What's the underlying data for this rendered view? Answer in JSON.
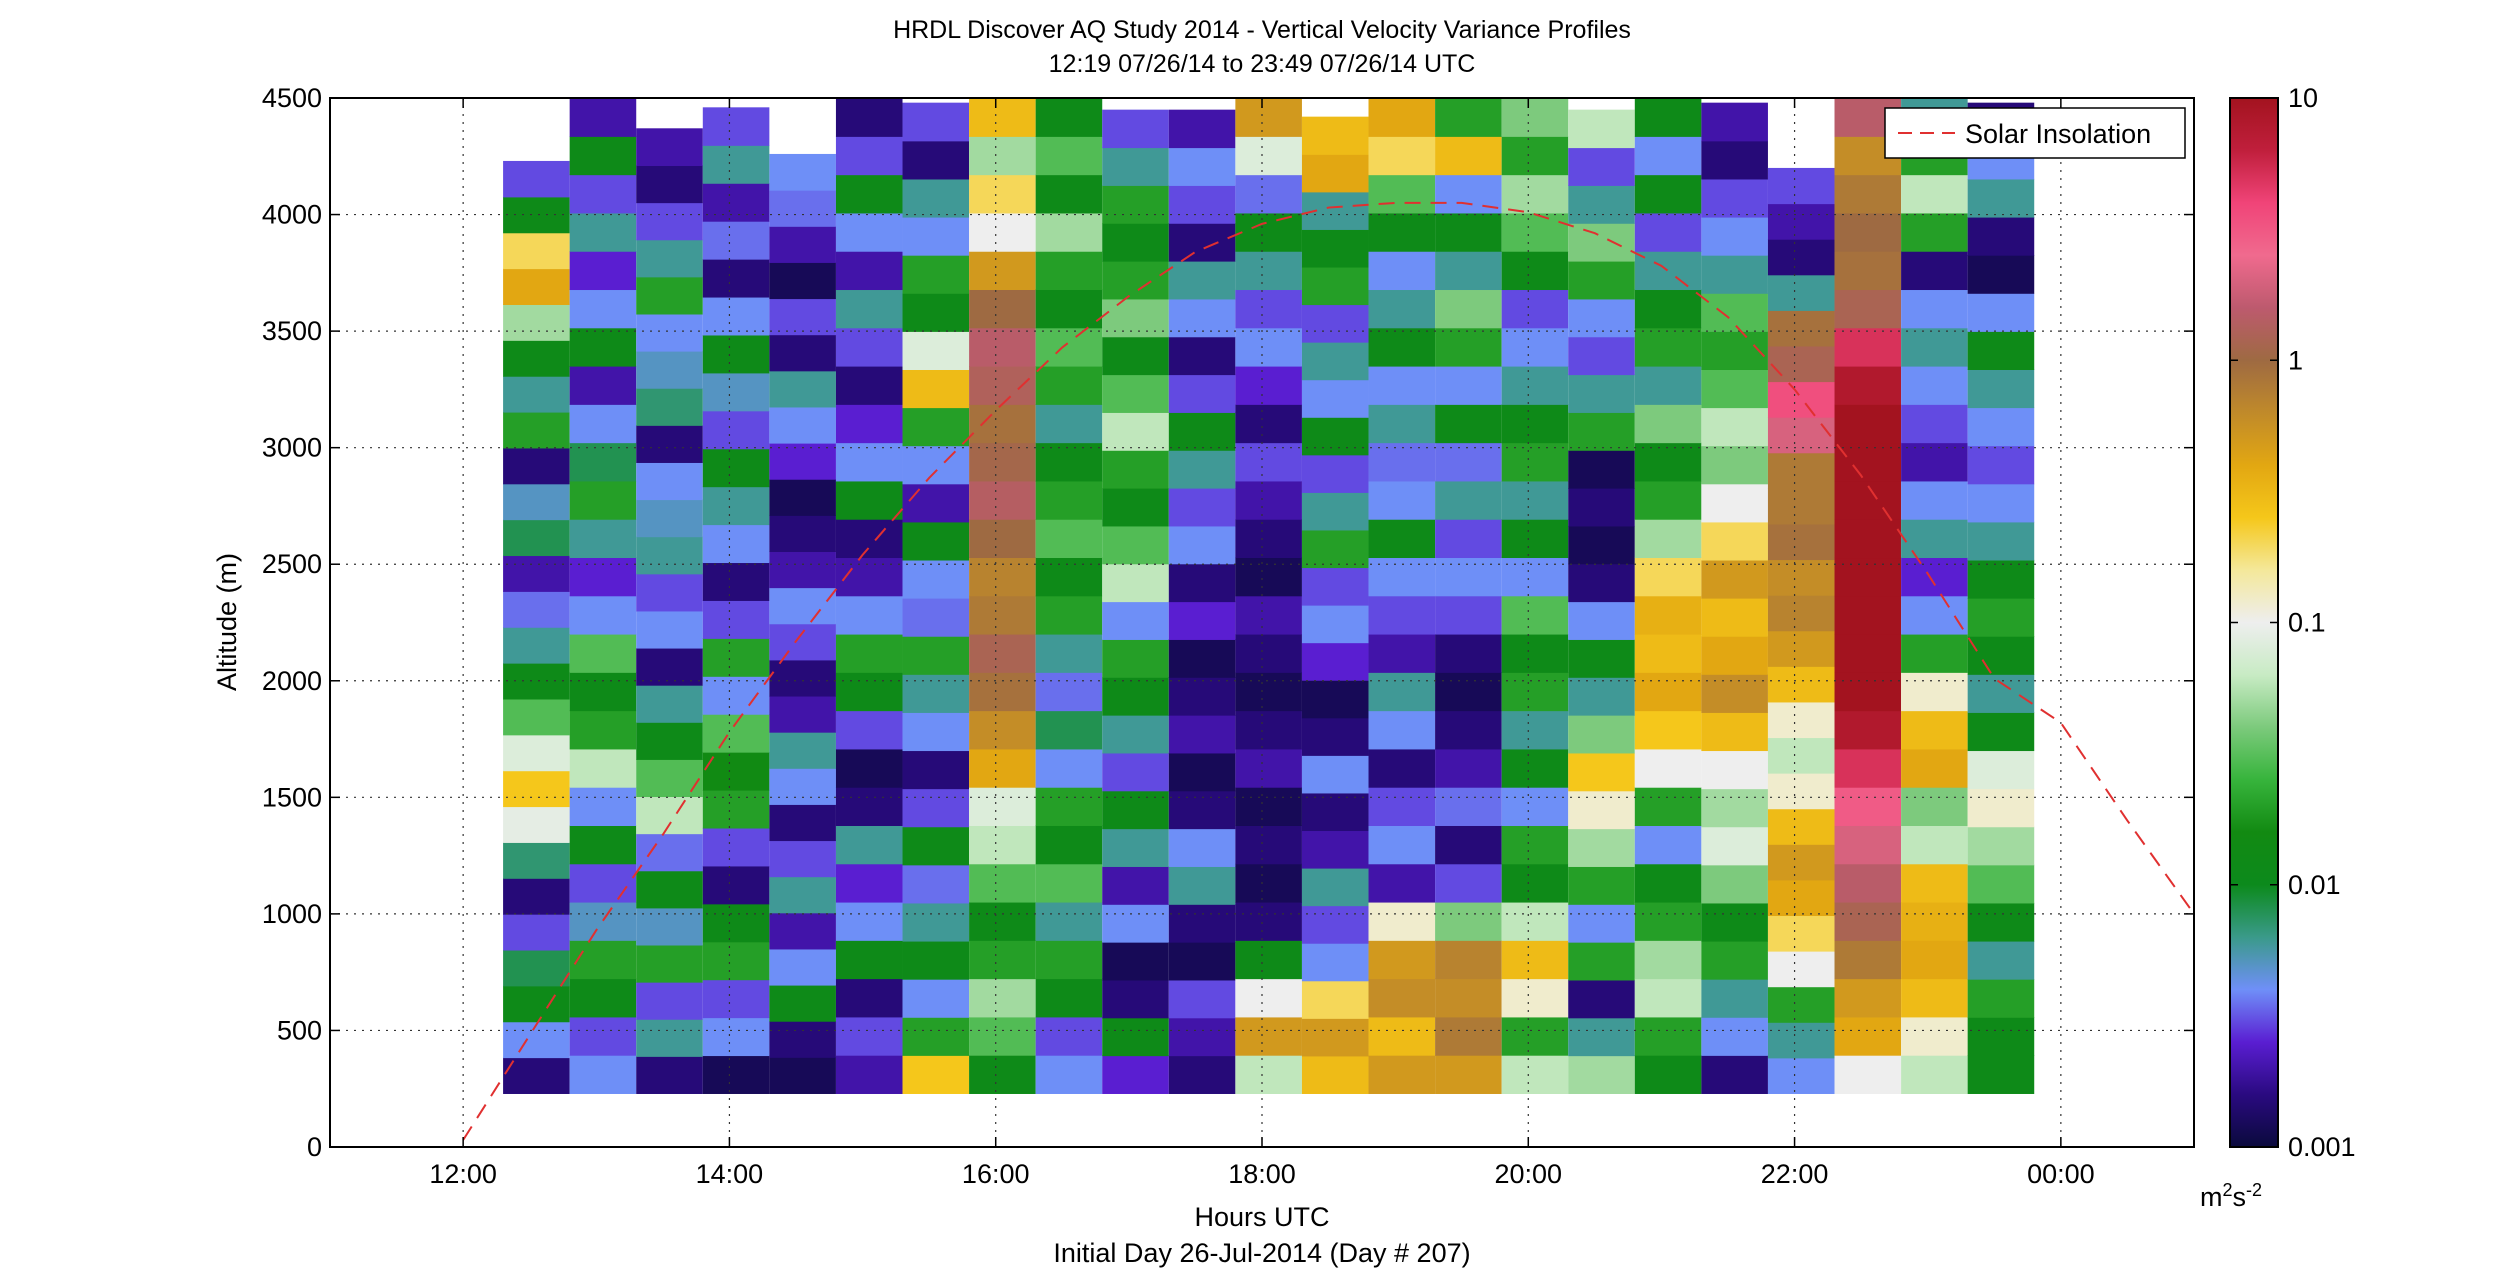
{
  "chart_data": {
    "type": "heatmap",
    "title": "HRDL Discover AQ Study 2014 - Vertical Velocity Variance Profiles",
    "subtitle": "12:19 07/26/14 to 23:49 07/26/14  UTC",
    "xlabel": "Hours UTC",
    "xlabel2": "Initial Day 26-Jul-2014 (Day # 207)",
    "ylabel": "Altitude (m)",
    "x_unit": "hours UTC",
    "xlim": [
      11,
      25
    ],
    "ylim": [
      0,
      4500
    ],
    "x_ticks": [
      {
        "value": 12,
        "label": "12:00"
      },
      {
        "value": 14,
        "label": "14:00"
      },
      {
        "value": 16,
        "label": "16:00"
      },
      {
        "value": 18,
        "label": "18:00"
      },
      {
        "value": 20,
        "label": "20:00"
      },
      {
        "value": 22,
        "label": "22:00"
      },
      {
        "value": 24,
        "label": "00:00"
      }
    ],
    "y_ticks": [
      0,
      500,
      1000,
      1500,
      2000,
      2500,
      3000,
      3500,
      4000,
      4500
    ],
    "grid": true,
    "colorbar": {
      "scale": "log",
      "range": [
        0.001,
        10
      ],
      "ticks": [
        {
          "value": 0.001,
          "label": "0.001"
        },
        {
          "value": 0.01,
          "label": "0.01"
        },
        {
          "value": 0.1,
          "label": "0.1"
        },
        {
          "value": 1,
          "label": "1"
        },
        {
          "value": 10,
          "label": "10"
        }
      ],
      "unit_label": "m",
      "unit_sup1": "2",
      "unit_mid": "s",
      "unit_sup2": "-2",
      "stops": [
        "#0a0a3c",
        "#2a0a80",
        "#5a1ed2",
        "#6f8ff8",
        "#3a9a8a",
        "#0c8a1c",
        "#128a12",
        "#37b43c",
        "#7cca7c",
        "#c8ebc4",
        "#eeeeee",
        "#f4e89a",
        "#f5c71a",
        "#e2a712",
        "#c08a2a",
        "#9e6a42",
        "#bd5a6e",
        "#f06a8e",
        "#f04478",
        "#c01f3c",
        "#a3131f"
      ]
    },
    "legend": {
      "position": "top-right",
      "entries": [
        {
          "label": "Solar Insolation",
          "color": "#e03030",
          "style": "dashed"
        }
      ]
    },
    "solar_insolation": {
      "x": [
        12.0,
        12.5,
        13.0,
        13.5,
        14.0,
        14.5,
        15.0,
        15.5,
        16.0,
        16.5,
        17.0,
        17.5,
        18.0,
        18.5,
        19.0,
        19.5,
        20.0,
        20.5,
        21.0,
        21.5,
        22.0,
        22.5,
        23.0,
        23.5,
        24.0,
        24.5,
        25.0
      ],
      "y": [
        30,
        480,
        930,
        1340,
        1780,
        2170,
        2540,
        2870,
        3160,
        3430,
        3650,
        3840,
        3960,
        4030,
        4050,
        4050,
        4010,
        3920,
        3780,
        3560,
        3250,
        2880,
        2460,
        2010,
        1820,
        1400,
        1000
      ]
    },
    "profiles": [
      {
        "time": 12.55,
        "top": 4230,
        "levels": [
          0.0015,
          0.004,
          0.012,
          0.008,
          0.003,
          0.0015,
          0.007,
          0.09,
          0.25,
          0.08,
          0.03,
          0.012,
          0.006,
          0.0035,
          0.002,
          0.008,
          0.005,
          0.0015,
          0.02,
          0.006,
          0.012,
          0.05,
          0.4,
          0.2,
          0.012,
          0.003
        ]
      },
      {
        "time": 13.05,
        "top": 4500,
        "levels": [
          0.004,
          0.003,
          0.012,
          0.02,
          0.005,
          0.003,
          0.012,
          0.004,
          0.06,
          0.02,
          0.012,
          0.03,
          0.004,
          0.0025,
          0.006,
          0.02,
          0.008,
          0.004,
          0.002,
          0.012,
          0.004,
          0.0025,
          0.006,
          0.003,
          0.012,
          0.002
        ]
      },
      {
        "time": 13.55,
        "top": 4370,
        "levels": [
          0.0015,
          0.006,
          0.003,
          0.02,
          0.005,
          0.012,
          0.0035,
          0.06,
          0.03,
          0.012,
          0.006,
          0.0015,
          0.004,
          0.003,
          0.006,
          0.005,
          0.004,
          0.0015,
          0.007,
          0.005,
          0.004,
          0.02,
          0.006,
          0.003,
          0.0015,
          0.002
        ]
      },
      {
        "time": 14.05,
        "top": 4460,
        "levels": [
          0.0012,
          0.004,
          0.003,
          0.02,
          0.012,
          0.0015,
          0.003,
          0.02,
          0.015,
          0.03,
          0.004,
          0.02,
          0.003,
          0.0015,
          0.004,
          0.006,
          0.012,
          0.003,
          0.005,
          0.012,
          0.004,
          0.0015,
          0.0035,
          0.002,
          0.006,
          0.003
        ]
      },
      {
        "time": 14.55,
        "top": 4260,
        "levels": [
          0.0012,
          0.0015,
          0.012,
          0.004,
          0.002,
          0.006,
          0.003,
          0.0015,
          0.004,
          0.006,
          0.002,
          0.0015,
          0.003,
          0.004,
          0.002,
          0.0015,
          0.0012,
          0.0025,
          0.004,
          0.006,
          0.0015,
          0.003,
          0.0012,
          0.002,
          0.0035,
          0.004
        ]
      },
      {
        "time": 15.05,
        "top": 4500,
        "levels": [
          0.002,
          0.003,
          0.0015,
          0.012,
          0.004,
          0.0025,
          0.006,
          0.0015,
          0.0012,
          0.003,
          0.012,
          0.02,
          0.004,
          0.002,
          0.0015,
          0.012,
          0.004,
          0.0025,
          0.0015,
          0.003,
          0.006,
          0.002,
          0.004,
          0.012,
          0.003,
          0.0015
        ]
      },
      {
        "time": 15.55,
        "top": 4480,
        "levels": [
          0.25,
          0.02,
          0.004,
          0.012,
          0.006,
          0.0035,
          0.012,
          0.003,
          0.0015,
          0.004,
          0.006,
          0.02,
          0.0035,
          0.004,
          0.012,
          0.002,
          0.004,
          0.02,
          0.3,
          0.08,
          0.012,
          0.02,
          0.004,
          0.006,
          0.0015,
          0.003
        ]
      },
      {
        "time": 16.05,
        "top": 4500,
        "levels": [
          0.012,
          0.03,
          0.05,
          0.02,
          0.012,
          0.03,
          0.06,
          0.08,
          0.4,
          0.6,
          0.9,
          1.2,
          0.8,
          0.7,
          1.0,
          1.4,
          1.1,
          0.9,
          1.3,
          1.5,
          1.0,
          0.5,
          0.1,
          0.2,
          0.05,
          0.3
        ]
      },
      {
        "time": 16.55,
        "top": 4500,
        "levels": [
          0.004,
          0.003,
          0.012,
          0.02,
          0.006,
          0.03,
          0.012,
          0.02,
          0.004,
          0.008,
          0.0035,
          0.006,
          0.02,
          0.012,
          0.03,
          0.02,
          0.012,
          0.006,
          0.02,
          0.03,
          0.012,
          0.02,
          0.05,
          0.012,
          0.03,
          0.012
        ]
      },
      {
        "time": 17.05,
        "top": 4450,
        "levels": [
          0.0025,
          0.012,
          0.0015,
          0.0012,
          0.004,
          0.002,
          0.006,
          0.012,
          0.003,
          0.006,
          0.012,
          0.02,
          0.004,
          0.06,
          0.03,
          0.012,
          0.02,
          0.06,
          0.03,
          0.012,
          0.04,
          0.02,
          0.012,
          0.02,
          0.006,
          0.003
        ]
      },
      {
        "time": 17.55,
        "top": 4450,
        "levels": [
          0.0015,
          0.002,
          0.003,
          0.0012,
          0.0015,
          0.006,
          0.004,
          0.0015,
          0.0012,
          0.002,
          0.0015,
          0.0012,
          0.0025,
          0.0015,
          0.004,
          0.003,
          0.006,
          0.012,
          0.003,
          0.0015,
          0.004,
          0.006,
          0.0015,
          0.003,
          0.004,
          0.002
        ]
      },
      {
        "time": 18.05,
        "top": 4500,
        "levels": [
          0.06,
          0.5,
          0.1,
          0.012,
          0.0015,
          0.0012,
          0.0015,
          0.0012,
          0.002,
          0.0015,
          0.0012,
          0.0015,
          0.002,
          0.0012,
          0.0015,
          0.002,
          0.003,
          0.0015,
          0.0025,
          0.004,
          0.003,
          0.006,
          0.012,
          0.0035,
          0.08,
          0.5
        ]
      },
      {
        "time": 18.55,
        "top": 4420,
        "levels": [
          0.3,
          0.5,
          0.2,
          0.004,
          0.003,
          0.006,
          0.002,
          0.0015,
          0.004,
          0.0015,
          0.0012,
          0.0025,
          0.004,
          0.003,
          0.02,
          0.006,
          0.003,
          0.012,
          0.004,
          0.006,
          0.003,
          0.02,
          0.012,
          0.006,
          0.4,
          0.3
        ]
      },
      {
        "time": 19.05,
        "top": 4500,
        "levels": [
          0.5,
          0.3,
          0.6,
          0.5,
          0.12,
          0.002,
          0.004,
          0.003,
          0.0015,
          0.004,
          0.006,
          0.002,
          0.003,
          0.004,
          0.012,
          0.004,
          0.0035,
          0.006,
          0.004,
          0.012,
          0.006,
          0.004,
          0.012,
          0.03,
          0.2,
          0.4
        ]
      },
      {
        "time": 19.55,
        "top": 4500,
        "levels": [
          0.5,
          0.8,
          0.6,
          0.7,
          0.04,
          0.003,
          0.0015,
          0.0035,
          0.002,
          0.0015,
          0.0012,
          0.0015,
          0.003,
          0.004,
          0.003,
          0.006,
          0.0035,
          0.012,
          0.004,
          0.02,
          0.04,
          0.006,
          0.012,
          0.004,
          0.3,
          0.02
        ]
      },
      {
        "time": 20.05,
        "top": 4500,
        "levels": [
          0.06,
          0.02,
          0.12,
          0.3,
          0.06,
          0.012,
          0.02,
          0.004,
          0.012,
          0.006,
          0.02,
          0.012,
          0.03,
          0.004,
          0.012,
          0.006,
          0.02,
          0.012,
          0.006,
          0.004,
          0.003,
          0.012,
          0.03,
          0.05,
          0.02,
          0.04
        ]
      },
      {
        "time": 20.55,
        "top": 4450,
        "levels": [
          0.05,
          0.006,
          0.0015,
          0.02,
          0.004,
          0.02,
          0.05,
          0.12,
          0.25,
          0.04,
          0.006,
          0.012,
          0.004,
          0.0015,
          0.0012,
          0.0015,
          0.0012,
          0.02,
          0.006,
          0.003,
          0.004,
          0.02,
          0.04,
          0.006,
          0.003,
          0.06
        ]
      },
      {
        "time": 21.05,
        "top": 4500,
        "levels": [
          0.012,
          0.02,
          0.06,
          0.05,
          0.02,
          0.012,
          0.004,
          0.02,
          0.1,
          0.25,
          0.4,
          0.3,
          0.35,
          0.2,
          0.05,
          0.02,
          0.012,
          0.04,
          0.006,
          0.02,
          0.012,
          0.006,
          0.003,
          0.012,
          0.004,
          0.012
        ]
      },
      {
        "time": 21.55,
        "top": 4480,
        "levels": [
          0.0015,
          0.004,
          0.006,
          0.02,
          0.012,
          0.04,
          0.08,
          0.05,
          0.1,
          0.3,
          0.6,
          0.4,
          0.3,
          0.5,
          0.2,
          0.1,
          0.04,
          0.06,
          0.03,
          0.02,
          0.03,
          0.006,
          0.004,
          0.003,
          0.0015,
          0.002
        ]
      },
      {
        "time": 22.05,
        "top": 4200,
        "levels": [
          0.004,
          0.006,
          0.02,
          0.1,
          0.2,
          0.4,
          0.5,
          0.3,
          0.12,
          0.06,
          0.12,
          0.3,
          0.5,
          0.7,
          0.6,
          0.9,
          0.8,
          0.8,
          2.0,
          3.5,
          1.2,
          0.9,
          0.006,
          0.0015,
          0.002,
          0.003
        ]
      },
      {
        "time": 22.55,
        "top": 4500,
        "levels": [
          0.1,
          0.4,
          0.5,
          0.8,
          1.2,
          1.5,
          2.0,
          3.0,
          5.0,
          8.0,
          10.0,
          10.0,
          10.0,
          10.0,
          10.0,
          10.0,
          10.0,
          10.0,
          8.0,
          5.0,
          1.2,
          0.9,
          1.0,
          0.8,
          0.6,
          1.5
        ]
      },
      {
        "time": 23.05,
        "top": 4500,
        "levels": [
          0.06,
          0.12,
          0.3,
          0.4,
          0.35,
          0.3,
          0.06,
          0.04,
          0.4,
          0.3,
          0.12,
          0.02,
          0.004,
          0.0025,
          0.006,
          0.004,
          0.002,
          0.003,
          0.004,
          0.006,
          0.004,
          0.0015,
          0.02,
          0.06,
          0.02,
          0.006
        ]
      },
      {
        "time": 23.55,
        "top": 4480,
        "levels": [
          0.012,
          0.012,
          0.02,
          0.006,
          0.012,
          0.03,
          0.05,
          0.12,
          0.08,
          0.012,
          0.006,
          0.012,
          0.02,
          0.012,
          0.006,
          0.004,
          0.003,
          0.004,
          0.006,
          0.012,
          0.004,
          0.0012,
          0.0015,
          0.006,
          0.004,
          0.0015
        ]
      }
    ]
  }
}
